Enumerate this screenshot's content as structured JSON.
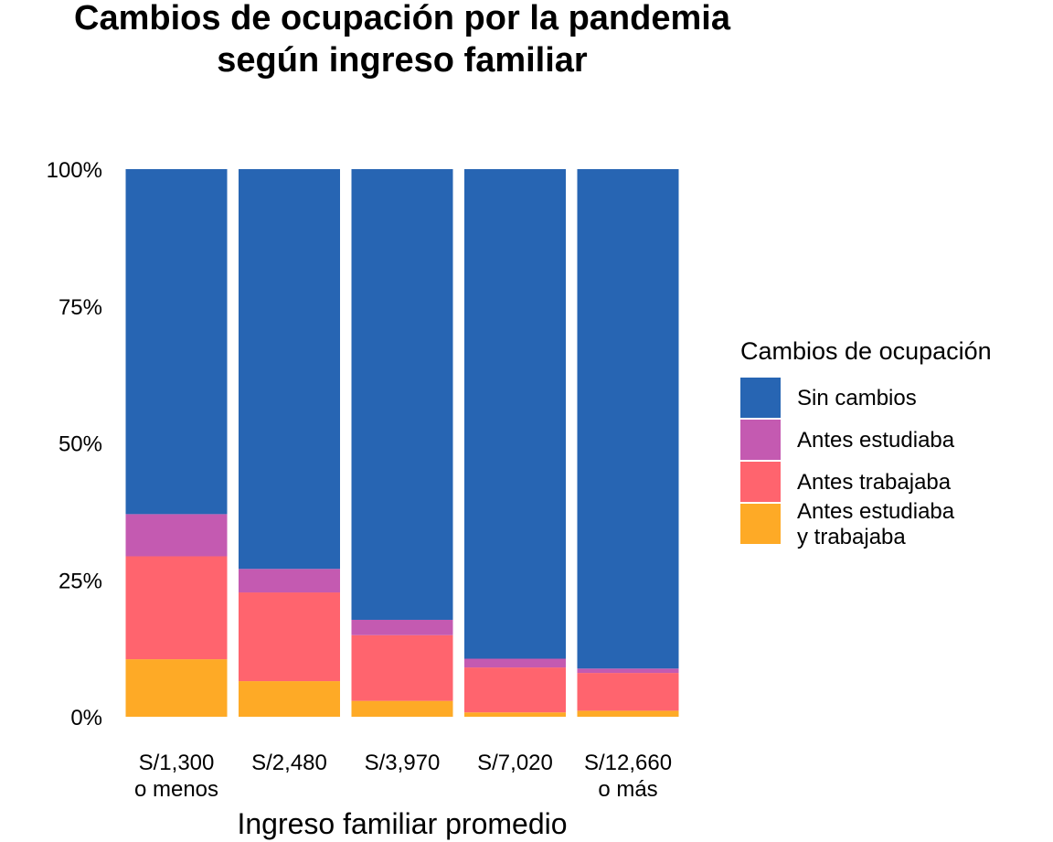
{
  "chart_data": {
    "type": "bar",
    "stacked": true,
    "normalized": true,
    "title": [
      "Cambios de ocupación por la pandemia",
      "según ingreso familiar"
    ],
    "xlabel": "Ingreso familiar promedio",
    "ylabel": "",
    "ylim": [
      0,
      1
    ],
    "yticks": [
      {
        "value": 0,
        "label": "0%"
      },
      {
        "value": 0.25,
        "label": "25%"
      },
      {
        "value": 0.5,
        "label": "50%"
      },
      {
        "value": 0.75,
        "label": "75%"
      },
      {
        "value": 1,
        "label": "100%"
      }
    ],
    "categories": [
      [
        "S/1,300",
        "o menos"
      ],
      [
        "S/2,480"
      ],
      [
        "S/3,970"
      ],
      [
        "S/7,020"
      ],
      [
        "S/12,660",
        "o más"
      ]
    ],
    "legend": {
      "title": "Cambios de ocupación",
      "position": "right"
    },
    "series": [
      {
        "name": "Antes estudiaba y trabajaba",
        "legend_lines": [
          "Antes estudiaba",
          "y trabajaba"
        ],
        "color": "#FEAA26",
        "values": [
          0.105,
          0.065,
          0.029,
          0.008,
          0.011
        ]
      },
      {
        "name": "Antes trabajaba",
        "legend_lines": [
          "Antes trabajaba"
        ],
        "color": "#FF646E",
        "values": [
          0.188,
          0.162,
          0.12,
          0.082,
          0.069
        ]
      },
      {
        "name": "Antes estudiaba",
        "legend_lines": [
          "Antes estudiaba"
        ],
        "color": "#C45AB1",
        "values": [
          0.077,
          0.043,
          0.028,
          0.016,
          0.008
        ]
      },
      {
        "name": "Sin cambios",
        "legend_lines": [
          "Sin cambios"
        ],
        "color": "#2765B3",
        "values": [
          0.63,
          0.73,
          0.823,
          0.894,
          0.912
        ]
      }
    ],
    "legend_order": [
      "Sin cambios",
      "Antes estudiaba",
      "Antes trabajaba",
      "Antes estudiaba y trabajaba"
    ],
    "grid": false
  }
}
